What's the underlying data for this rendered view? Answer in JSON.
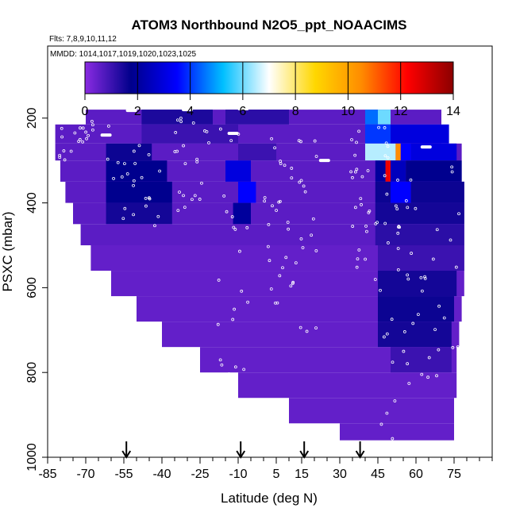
{
  "chart_data": {
    "type": "heatmap",
    "title": "ATOM3 Northbound N2O5_ppt_NOAACIMS",
    "flights_label": "Flts: 7,8,9,10,11,12",
    "dates_label": "MMDD: 1014,1017,1019,1020,1023,1025",
    "xlabel": "Latitude (deg N)",
    "ylabel": "PSXC (mbar)",
    "xlim": [
      -85,
      90
    ],
    "ylim": [
      1000,
      30
    ],
    "y_reversed": true,
    "x_ticks": [
      "-85",
      "-70",
      "-55",
      "-40",
      "-25",
      "-10",
      "5",
      "15",
      "30",
      "45",
      "60",
      "75"
    ],
    "y_ticks": [
      "200",
      "400",
      "600",
      "800",
      "1000"
    ],
    "colorbar": {
      "min": 0,
      "max": 14,
      "ticks": [
        "0",
        "2",
        "4",
        "6",
        "8",
        "10",
        "12",
        "14"
      ],
      "colors": [
        "#8a2be2",
        "#00008b",
        "#0000ff",
        "#00bfff",
        "#ffffff",
        "#ffd700",
        "#ff8c00",
        "#ff0000",
        "#8b0000"
      ]
    },
    "arrows_lat": [
      -54,
      -9,
      16,
      38
    ],
    "layers": [
      {
        "p": [
          180,
          215
        ],
        "segments": [
          [
            -70,
            70,
            0.6
          ],
          [
            -48,
            -20,
            1.4
          ],
          [
            -15,
            10,
            1.2
          ],
          [
            40,
            45,
            4.5
          ],
          [
            45,
            50,
            6.0
          ]
        ]
      },
      {
        "p": [
          215,
          260
        ],
        "segments": [
          [
            -82,
            70,
            0.6
          ],
          [
            -48,
            -10,
            1.0
          ],
          [
            40,
            50,
            4.0
          ],
          [
            50,
            65,
            3.0
          ],
          [
            65,
            73,
            3.0
          ]
        ]
      },
      {
        "p": [
          260,
          300
        ],
        "segments": [
          [
            -82,
            78,
            0.6
          ],
          [
            -62,
            -44,
            1.6
          ],
          [
            -10,
            5,
            1.0
          ],
          [
            40,
            52,
            6.5
          ],
          [
            52,
            54,
            10.5
          ],
          [
            54,
            58,
            3.5
          ],
          [
            58,
            76,
            3.0
          ]
        ]
      },
      {
        "p": [
          300,
          350
        ],
        "segments": [
          [
            -80,
            78,
            0.6
          ],
          [
            -62,
            -38,
            1.8
          ],
          [
            -15,
            -5,
            3.0
          ],
          [
            44,
            48,
            2.0
          ],
          [
            48,
            50,
            12.5
          ],
          [
            50,
            56,
            2.5
          ],
          [
            56,
            78,
            1.8
          ]
        ]
      },
      {
        "p": [
          350,
          400
        ],
        "segments": [
          [
            -78,
            79,
            0.6
          ],
          [
            -62,
            -36,
            1.8
          ],
          [
            -10,
            -3,
            3.5
          ],
          [
            44,
            50,
            1.6
          ],
          [
            50,
            58,
            3.5
          ],
          [
            58,
            79,
            1.6
          ]
        ]
      },
      {
        "p": [
          400,
          450
        ],
        "segments": [
          [
            -75,
            79,
            0.6
          ],
          [
            -62,
            -36,
            1.5
          ],
          [
            -12,
            -5,
            2.0
          ],
          [
            44,
            79,
            1.5
          ]
        ]
      },
      {
        "p": [
          450,
          500
        ],
        "segments": [
          [
            -72,
            79,
            0.6
          ],
          [
            44,
            79,
            1.2
          ]
        ]
      },
      {
        "p": [
          500,
          560
        ],
        "segments": [
          [
            -68,
            79,
            0.5
          ],
          [
            45,
            79,
            1.0
          ]
        ]
      },
      {
        "p": [
          560,
          620
        ],
        "segments": [
          [
            -60,
            79,
            0.5
          ],
          [
            45,
            76,
            1.5
          ]
        ]
      },
      {
        "p": [
          620,
          680
        ],
        "segments": [
          [
            -50,
            78,
            0.5
          ],
          [
            45,
            75,
            1.6
          ]
        ]
      },
      {
        "p": [
          680,
          740
        ],
        "segments": [
          [
            -40,
            77,
            0.5
          ],
          [
            45,
            74,
            1.5
          ]
        ]
      },
      {
        "p": [
          740,
          800
        ],
        "segments": [
          [
            -25,
            76,
            0.5
          ],
          [
            50,
            74,
            1.0
          ]
        ]
      },
      {
        "p": [
          800,
          860
        ],
        "segments": [
          [
            -10,
            76,
            0.5
          ]
        ]
      },
      {
        "p": [
          860,
          920
        ],
        "segments": [
          [
            10,
            75,
            0.5
          ]
        ]
      },
      {
        "p": [
          920,
          960
        ],
        "segments": [
          [
            30,
            75,
            0.5
          ]
        ]
      }
    ]
  }
}
